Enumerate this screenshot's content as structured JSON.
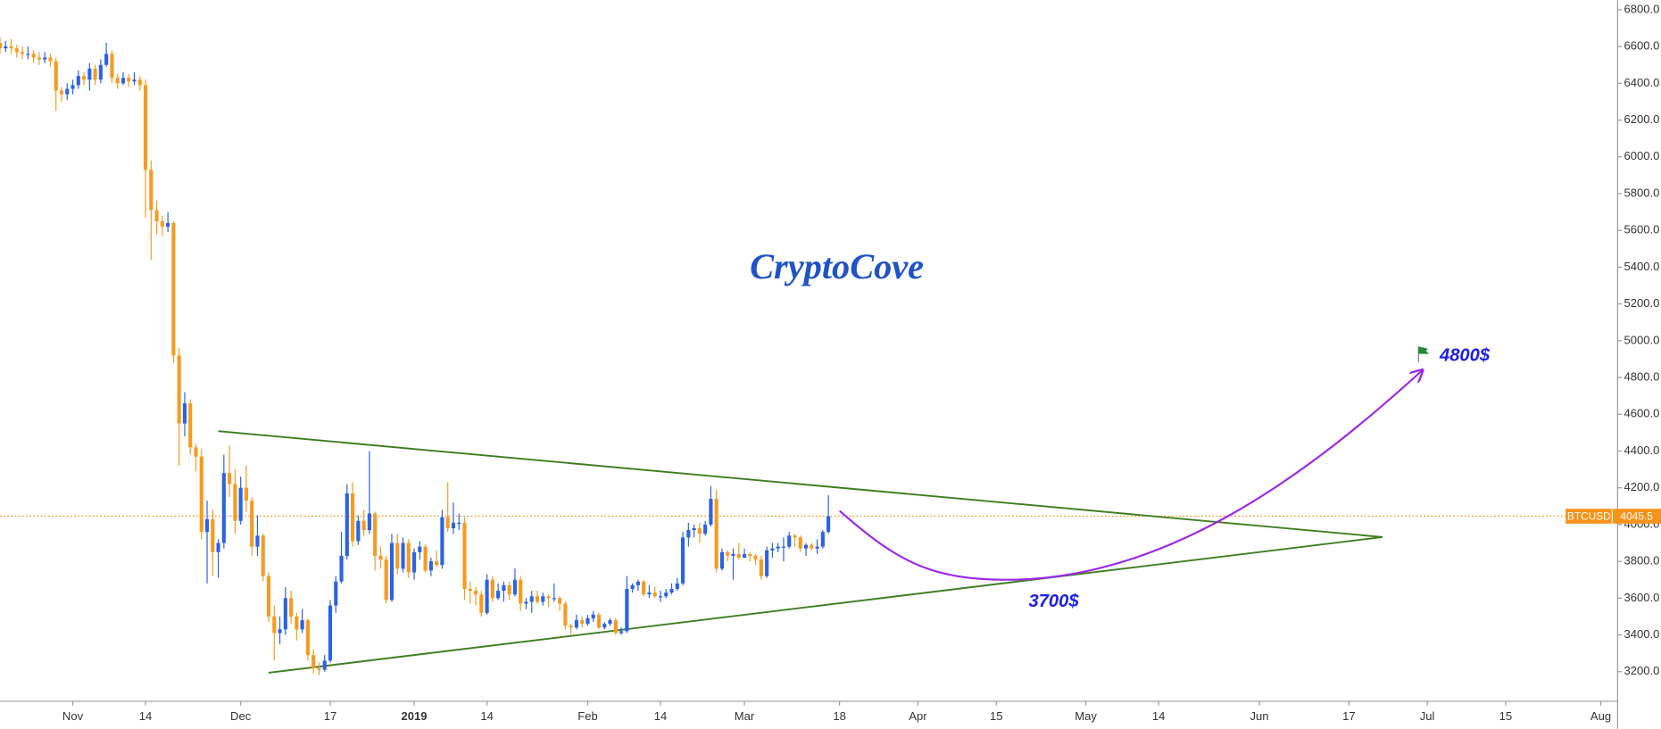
{
  "chart_data": {
    "type": "candlestick",
    "x": [
      "Oct 19",
      "Oct 20",
      "Oct 21",
      "Oct 22",
      "Oct 23",
      "Oct 24",
      "Oct 25",
      "Oct 26",
      "Oct 27",
      "Oct 28",
      "Oct 29",
      "Oct 30",
      "Oct 31",
      "Nov 1",
      "Nov 2",
      "Nov 3",
      "Nov 4",
      "Nov 5",
      "Nov 6",
      "Nov 7",
      "Nov 8",
      "Nov 9",
      "Nov 10",
      "Nov 11",
      "Nov 12",
      "Nov 13",
      "Nov 14",
      "Nov 15",
      "Nov 16",
      "Nov 17",
      "Nov 18",
      "Nov 19",
      "Nov 20",
      "Nov 21",
      "Nov 22",
      "Nov 23",
      "Nov 24",
      "Nov 25",
      "Nov 26",
      "Nov 27",
      "Nov 28",
      "Nov 29",
      "Nov 30",
      "Dec 1",
      "Dec 2",
      "Dec 3",
      "Dec 4",
      "Dec 5",
      "Dec 6",
      "Dec 7",
      "Dec 8",
      "Dec 9",
      "Dec 10",
      "Dec 11",
      "Dec 12",
      "Dec 13",
      "Dec 14",
      "Dec 15",
      "Dec 16",
      "Dec 17",
      "Dec 18",
      "Dec 19",
      "Dec 20",
      "Dec 21",
      "Dec 22",
      "Dec 23",
      "Dec 24",
      "Dec 25",
      "Dec 26",
      "Dec 27",
      "Dec 28",
      "Dec 29",
      "Dec 30",
      "Dec 31",
      "Jan 1",
      "Jan 2",
      "Jan 3",
      "Jan 4",
      "Jan 5",
      "Jan 6",
      "Jan 7",
      "Jan 8",
      "Jan 9",
      "Jan 10",
      "Jan 11",
      "Jan 12",
      "Jan 13",
      "Jan 14",
      "Jan 15",
      "Jan 16",
      "Jan 17",
      "Jan 18",
      "Jan 19",
      "Jan 20",
      "Jan 21",
      "Jan 22",
      "Jan 23",
      "Jan 24",
      "Jan 25",
      "Jan 26",
      "Jan 27",
      "Jan 28",
      "Jan 29",
      "Jan 30",
      "Jan 31",
      "Feb 1",
      "Feb 2",
      "Feb 3",
      "Feb 4",
      "Feb 5",
      "Feb 6",
      "Feb 7",
      "Feb 8",
      "Feb 9",
      "Feb 10",
      "Feb 11",
      "Feb 12",
      "Feb 13",
      "Feb 14",
      "Feb 15",
      "Feb 16",
      "Feb 17",
      "Feb 18",
      "Feb 19",
      "Feb 20",
      "Feb 21",
      "Feb 22",
      "Feb 23",
      "Feb 24",
      "Feb 25",
      "Feb 26",
      "Feb 27",
      "Feb 28",
      "Mar 1",
      "Mar 2",
      "Mar 3",
      "Mar 4",
      "Mar 5",
      "Mar 6",
      "Mar 7",
      "Mar 8",
      "Mar 9",
      "Mar 10",
      "Mar 11",
      "Mar 12",
      "Mar 13",
      "Mar 14",
      "Mar 15",
      "Mar 16"
    ],
    "ohlc": [
      [
        6620,
        6650,
        6560,
        6590
      ],
      [
        6590,
        6630,
        6570,
        6600
      ],
      [
        6600,
        6640,
        6560,
        6590
      ],
      [
        6590,
        6610,
        6540,
        6570
      ],
      [
        6570,
        6600,
        6530,
        6560
      ],
      [
        6560,
        6600,
        6530,
        6560
      ],
      [
        6560,
        6580,
        6510,
        6540
      ],
      [
        6540,
        6570,
        6500,
        6530
      ],
      [
        6530,
        6570,
        6510,
        6540
      ],
      [
        6540,
        6560,
        6490,
        6520
      ],
      [
        6520,
        6540,
        6250,
        6360
      ],
      [
        6360,
        6380,
        6300,
        6340
      ],
      [
        6340,
        6400,
        6310,
        6370
      ],
      [
        6370,
        6420,
        6340,
        6390
      ],
      [
        6390,
        6470,
        6370,
        6440
      ],
      [
        6440,
        6460,
        6390,
        6420
      ],
      [
        6420,
        6510,
        6360,
        6480
      ],
      [
        6480,
        6500,
        6390,
        6420
      ],
      [
        6420,
        6530,
        6400,
        6500
      ],
      [
        6500,
        6620,
        6490,
        6560
      ],
      [
        6560,
        6580,
        6400,
        6430
      ],
      [
        6430,
        6450,
        6370,
        6400
      ],
      [
        6400,
        6460,
        6390,
        6430
      ],
      [
        6430,
        6450,
        6380,
        6410
      ],
      [
        6410,
        6460,
        6390,
        6420
      ],
      [
        6420,
        6440,
        6360,
        6390
      ],
      [
        6390,
        6420,
        5670,
        5930
      ],
      [
        5930,
        5980,
        5440,
        5710
      ],
      [
        5710,
        5760,
        5580,
        5650
      ],
      [
        5650,
        5680,
        5570,
        5620
      ],
      [
        5620,
        5700,
        5590,
        5640
      ],
      [
        5640,
        5650,
        4880,
        4920
      ],
      [
        4920,
        4960,
        4320,
        4550
      ],
      [
        4550,
        4720,
        4480,
        4660
      ],
      [
        4660,
        4680,
        4380,
        4420
      ],
      [
        4420,
        4440,
        4290,
        4370
      ],
      [
        4370,
        4410,
        3920,
        3960
      ],
      [
        3960,
        4130,
        3680,
        4030
      ],
      [
        4030,
        4080,
        3720,
        3850
      ],
      [
        3850,
        3920,
        3710,
        3900
      ],
      [
        3900,
        4380,
        3870,
        4280
      ],
      [
        4280,
        4430,
        4150,
        4220
      ],
      [
        4220,
        4300,
        3950,
        4020
      ],
      [
        4020,
        4260,
        4000,
        4200
      ],
      [
        4200,
        4320,
        4070,
        4130
      ],
      [
        4130,
        4150,
        3830,
        3880
      ],
      [
        3880,
        4050,
        3830,
        3940
      ],
      [
        3940,
        3950,
        3690,
        3720
      ],
      [
        3720,
        3740,
        3470,
        3500
      ],
      [
        3500,
        3560,
        3260,
        3410
      ],
      [
        3410,
        3500,
        3350,
        3430
      ],
      [
        3430,
        3660,
        3400,
        3600
      ],
      [
        3600,
        3640,
        3460,
        3500
      ],
      [
        3500,
        3520,
        3370,
        3430
      ],
      [
        3430,
        3540,
        3410,
        3480
      ],
      [
        3480,
        3490,
        3260,
        3290
      ],
      [
        3290,
        3320,
        3190,
        3220
      ],
      [
        3220,
        3250,
        3180,
        3210
      ],
      [
        3210,
        3290,
        3200,
        3260
      ],
      [
        3260,
        3590,
        3250,
        3560
      ],
      [
        3560,
        3720,
        3520,
        3690
      ],
      [
        3690,
        3960,
        3680,
        3830
      ],
      [
        3830,
        4220,
        3810,
        4170
      ],
      [
        4170,
        4230,
        3880,
        3910
      ],
      [
        3910,
        4050,
        3890,
        4020
      ],
      [
        4020,
        4080,
        3940,
        3970
      ],
      [
        3970,
        4400,
        3950,
        4060
      ],
      [
        4060,
        4070,
        3750,
        3830
      ],
      [
        3830,
        3880,
        3760,
        3810
      ],
      [
        3810,
        3830,
        3570,
        3590
      ],
      [
        3590,
        3950,
        3580,
        3900
      ],
      [
        3900,
        3950,
        3730,
        3760
      ],
      [
        3760,
        3930,
        3740,
        3900
      ],
      [
        3900,
        3920,
        3710,
        3740
      ],
      [
        3740,
        3870,
        3700,
        3850
      ],
      [
        3850,
        3910,
        3810,
        3880
      ],
      [
        3880,
        3890,
        3740,
        3750
      ],
      [
        3750,
        3820,
        3720,
        3800
      ],
      [
        3800,
        3860,
        3770,
        3780
      ],
      [
        3780,
        4080,
        3760,
        4040
      ],
      [
        4040,
        4230,
        3960,
        3980
      ],
      [
        3980,
        4120,
        3950,
        4010
      ],
      [
        4010,
        4060,
        3970,
        4010
      ],
      [
        4010,
        4040,
        3590,
        3650
      ],
      [
        3650,
        3690,
        3570,
        3640
      ],
      [
        3640,
        3660,
        3560,
        3620
      ],
      [
        3620,
        3640,
        3500,
        3520
      ],
      [
        3520,
        3730,
        3510,
        3700
      ],
      [
        3700,
        3720,
        3580,
        3600
      ],
      [
        3600,
        3680,
        3590,
        3640
      ],
      [
        3640,
        3690,
        3580,
        3670
      ],
      [
        3670,
        3690,
        3590,
        3620
      ],
      [
        3620,
        3760,
        3610,
        3700
      ],
      [
        3700,
        3720,
        3530,
        3570
      ],
      [
        3570,
        3600,
        3540,
        3580
      ],
      [
        3580,
        3640,
        3520,
        3610
      ],
      [
        3610,
        3640,
        3570,
        3580
      ],
      [
        3580,
        3630,
        3560,
        3610
      ],
      [
        3610,
        3620,
        3550,
        3600
      ],
      [
        3600,
        3680,
        3580,
        3600
      ],
      [
        3600,
        3610,
        3530,
        3570
      ],
      [
        3570,
        3580,
        3430,
        3450
      ],
      [
        3450,
        3460,
        3400,
        3440
      ],
      [
        3440,
        3510,
        3430,
        3480
      ],
      [
        3480,
        3500,
        3440,
        3460
      ],
      [
        3460,
        3510,
        3450,
        3490
      ],
      [
        3490,
        3530,
        3470,
        3510
      ],
      [
        3510,
        3520,
        3430,
        3440
      ],
      [
        3440,
        3470,
        3430,
        3460
      ],
      [
        3460,
        3490,
        3450,
        3480
      ],
      [
        3480,
        3490,
        3400,
        3410
      ],
      [
        3410,
        3440,
        3400,
        3420
      ],
      [
        3420,
        3720,
        3410,
        3650
      ],
      [
        3650,
        3680,
        3630,
        3670
      ],
      [
        3670,
        3700,
        3640,
        3690
      ],
      [
        3690,
        3700,
        3610,
        3620
      ],
      [
        3620,
        3670,
        3600,
        3630
      ],
      [
        3630,
        3660,
        3600,
        3610
      ],
      [
        3610,
        3640,
        3580,
        3610
      ],
      [
        3610,
        3650,
        3600,
        3630
      ],
      [
        3630,
        3680,
        3620,
        3650
      ],
      [
        3650,
        3710,
        3640,
        3680
      ],
      [
        3680,
        3960,
        3670,
        3930
      ],
      [
        3930,
        4010,
        3880,
        3970
      ],
      [
        3970,
        4000,
        3930,
        3980
      ],
      [
        3980,
        4010,
        3900,
        3950
      ],
      [
        3950,
        4020,
        3940,
        4000
      ],
      [
        4000,
        4210,
        3990,
        4140
      ],
      [
        4140,
        4190,
        3740,
        3760
      ],
      [
        3760,
        3870,
        3750,
        3850
      ],
      [
        3850,
        3860,
        3800,
        3830
      ],
      [
        3830,
        3870,
        3700,
        3840
      ],
      [
        3840,
        3900,
        3810,
        3820
      ],
      [
        3820,
        3870,
        3820,
        3840
      ],
      [
        3840,
        3850,
        3800,
        3830
      ],
      [
        3830,
        3840,
        3780,
        3810
      ],
      [
        3810,
        3830,
        3700,
        3720
      ],
      [
        3720,
        3880,
        3710,
        3860
      ],
      [
        3860,
        3900,
        3820,
        3870
      ],
      [
        3870,
        3900,
        3850,
        3880
      ],
      [
        3880,
        3930,
        3800,
        3880
      ],
      [
        3880,
        3960,
        3870,
        3940
      ],
      [
        3940,
        3950,
        3880,
        3930
      ],
      [
        3930,
        3940,
        3850,
        3870
      ],
      [
        3870,
        3900,
        3830,
        3890
      ],
      [
        3890,
        3900,
        3860,
        3870
      ],
      [
        3870,
        3920,
        3840,
        3880
      ],
      [
        3880,
        3970,
        3870,
        3960
      ],
      [
        3960,
        4160,
        3950,
        4045.5
      ]
    ],
    "up_color": "#2c62e3",
    "down_color": "#f59b22",
    "xlim": [
      "Oct 19",
      "Aug 4"
    ],
    "ylim": [
      3039,
      6852
    ],
    "grid": false,
    "yticks": [
      {
        "value": 3200,
        "label": "3200.0"
      },
      {
        "value": 3400,
        "label": "3400.0"
      },
      {
        "value": 3600,
        "label": "3600.0"
      },
      {
        "value": 3800,
        "label": "3800.0"
      },
      {
        "value": 4000,
        "label": "4000.0"
      },
      {
        "value": 4200,
        "label": "4200.0"
      },
      {
        "value": 4400,
        "label": "4400.0"
      },
      {
        "value": 4600,
        "label": "4600.0"
      },
      {
        "value": 4800,
        "label": "4800.0"
      },
      {
        "value": 5000,
        "label": "5000.0"
      },
      {
        "value": 5200,
        "label": "5200.0"
      },
      {
        "value": 5400,
        "label": "5400.0"
      },
      {
        "value": 5600,
        "label": "5600.0"
      },
      {
        "value": 5800,
        "label": "5800.0"
      },
      {
        "value": 6000,
        "label": "6000.0"
      },
      {
        "value": 6200,
        "label": "6200.0"
      },
      {
        "value": 6400,
        "label": "6400.0"
      },
      {
        "value": 6600,
        "label": "6600.0"
      },
      {
        "value": 6800,
        "label": "6800.0"
      }
    ],
    "xticks": [
      {
        "value": "Nov 1",
        "label": "Nov"
      },
      {
        "value": "Nov 14",
        "label": "14"
      },
      {
        "value": "Dec 1",
        "label": "Dec"
      },
      {
        "value": "Dec 17",
        "label": "17"
      },
      {
        "value": "Jan 1",
        "label": "2019"
      },
      {
        "value": "Jan 14",
        "label": "14"
      },
      {
        "value": "Feb 1",
        "label": "Feb"
      },
      {
        "value": "Feb 14",
        "label": "14"
      },
      {
        "value": "Mar 1",
        "label": "Mar"
      },
      {
        "value": "Mar 18",
        "label": "18"
      },
      {
        "value": "Apr 1",
        "label": "Apr"
      },
      {
        "value": "Apr 15",
        "label": "15"
      },
      {
        "value": "May 1",
        "label": "May"
      },
      {
        "value": "May 14",
        "label": "14"
      },
      {
        "value": "Jun 1",
        "label": "Jun"
      },
      {
        "value": "Jun 17",
        "label": "17"
      },
      {
        "value": "Jul 1",
        "label": "Jul"
      },
      {
        "value": "Jul 15",
        "label": "15"
      },
      {
        "value": "Aug 1",
        "label": "Aug"
      }
    ],
    "last_price": {
      "name": "BTCUSD",
      "value": 4045.5,
      "color": "#f7931a"
    },
    "watermark": "CryptoCove",
    "trendlines": [
      {
        "color": "#3f7d20",
        "points": [
          [
            "Nov 27",
            4508
          ],
          [
            "Jun 23",
            3932
          ]
        ]
      },
      {
        "color": "#3f7d20",
        "points": [
          [
            "Dec 6",
            3194
          ],
          [
            "Jun 23",
            3932
          ]
        ]
      }
    ],
    "projection": {
      "color": "#9b27e6",
      "points": [
        [
          "Mar 18",
          4075
        ],
        [
          "Apr 17",
          3700
        ],
        [
          "Jun 30",
          4836
        ]
      ]
    },
    "targets": [
      {
        "label": "3700$",
        "value": 3700
      },
      {
        "label": "4800$",
        "value": 4800
      }
    ]
  }
}
